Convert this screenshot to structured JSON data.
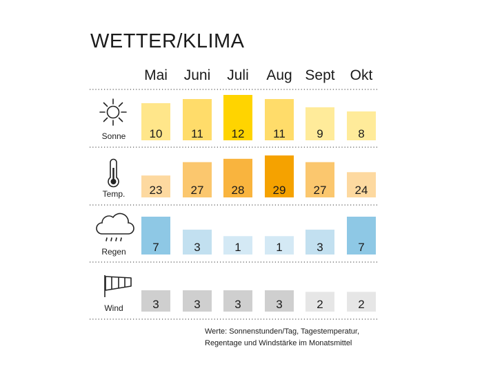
{
  "title": "WETTER/KLIMA",
  "footnote": {
    "line1": "Werte: Sonnenstunden/Tag, Tagestemperatur,",
    "line2": "Regentage und Windstärke im Monatsmittel"
  },
  "chart_data": {
    "type": "bar",
    "categories": [
      "Mai",
      "Juni",
      "Juli",
      "Aug",
      "Sept",
      "Okt"
    ],
    "series": [
      {
        "name": "Sonne",
        "icon": "sun-icon",
        "values": [
          10,
          11,
          12,
          11,
          9,
          8
        ],
        "min": 6,
        "max": 12,
        "colors": [
          "#ffe68a",
          "#ffdc6a",
          "#ffd400",
          "#ffdc6a",
          "#ffeb9a",
          "#ffeb9a"
        ]
      },
      {
        "name": "Temp.",
        "icon": "thermometer-icon",
        "values": [
          23,
          27,
          28,
          29,
          27,
          24
        ],
        "min": 22,
        "max": 29,
        "colors": [
          "#fdd9a0",
          "#fbc76e",
          "#f9b43e",
          "#f5a200",
          "#fbc76e",
          "#fdd9a0"
        ]
      },
      {
        "name": "Regen",
        "icon": "rain-cloud-icon",
        "values": [
          7,
          3,
          1,
          1,
          3,
          7
        ],
        "min": 0,
        "max": 7,
        "colors": [
          "#8ec8e5",
          "#c2e0f0",
          "#d4e9f5",
          "#d4e9f5",
          "#c2e0f0",
          "#8ec8e5"
        ]
      },
      {
        "name": "Wind",
        "icon": "windsock-icon",
        "values": [
          3,
          3,
          3,
          3,
          2,
          2
        ],
        "min": 0,
        "max": 3,
        "colors": [
          "#cfcfcf",
          "#cfcfcf",
          "#cfcfcf",
          "#cfcfcf",
          "#e6e6e6",
          "#e6e6e6"
        ]
      }
    ]
  }
}
